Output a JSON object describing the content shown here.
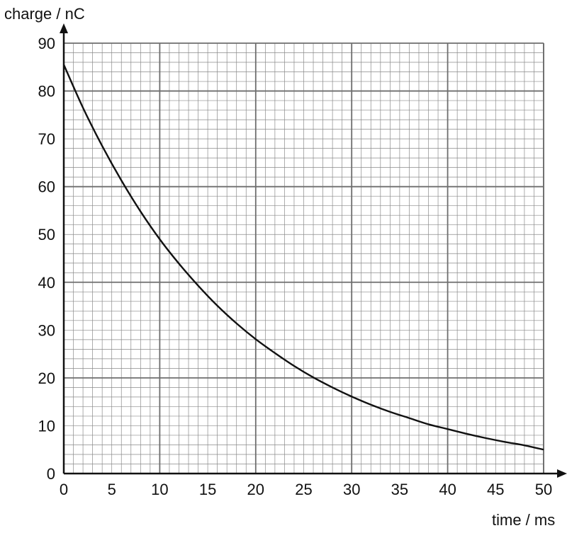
{
  "chart_data": {
    "type": "line",
    "ylabel": "charge / nC",
    "xlabel": "time / ms",
    "xlim": [
      0,
      50
    ],
    "ylim": [
      0,
      90
    ],
    "x_ticks": [
      0,
      5,
      10,
      15,
      20,
      25,
      30,
      35,
      40,
      45,
      50
    ],
    "y_ticks": [
      0,
      10,
      20,
      30,
      40,
      50,
      60,
      70,
      80,
      90
    ],
    "minor_x_step": 1,
    "minor_y_step": 2,
    "major_x_step": 10,
    "major_y_step": 20,
    "grid": true,
    "series": [
      {
        "x": [
          0,
          2,
          4,
          6,
          8,
          10,
          12,
          14,
          16,
          18,
          20,
          22,
          24,
          26,
          28,
          30,
          32,
          34,
          36,
          38,
          40,
          42,
          44,
          46,
          48,
          50
        ],
        "y": [
          85.5,
          76.5,
          68.5,
          61.3,
          54.8,
          49.0,
          43.9,
          39.3,
          35.1,
          31.4,
          28.1,
          25.2,
          22.5,
          20.1,
          18.0,
          16.1,
          14.4,
          12.9,
          11.6,
          10.3,
          9.3,
          8.3,
          7.4,
          6.6,
          5.9,
          5.0
        ],
        "color": "#111111"
      }
    ]
  }
}
